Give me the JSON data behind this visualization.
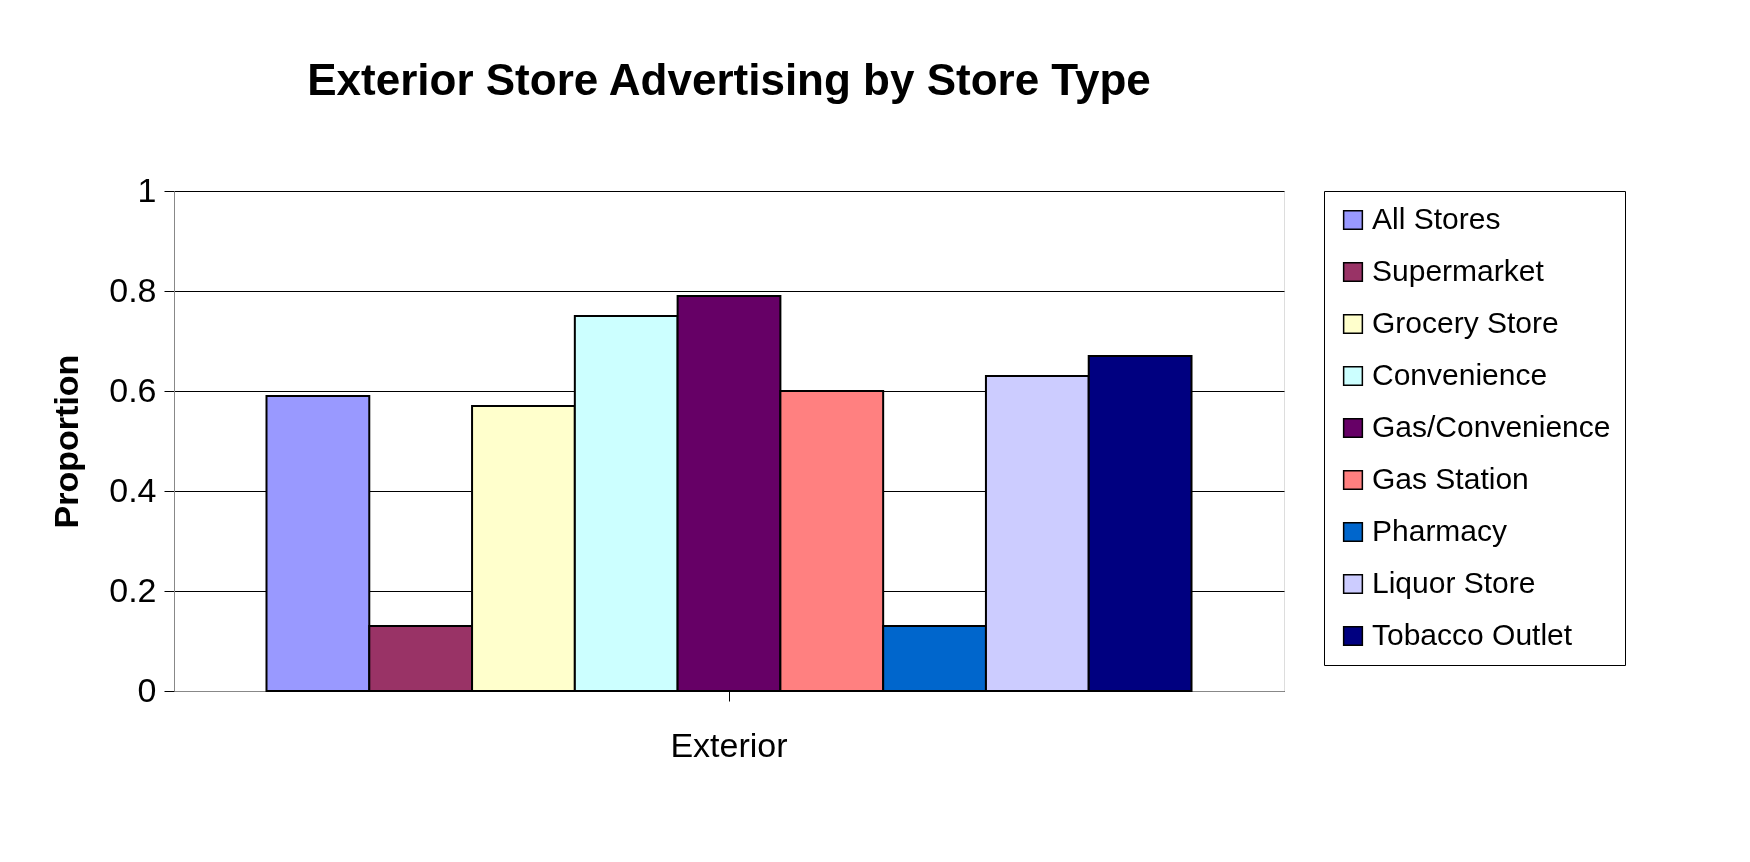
{
  "chart_data": {
    "type": "bar",
    "title": "Exterior Store Advertising by Store Type",
    "ylabel": "Proportion",
    "categories": [
      "Exterior"
    ],
    "series": [
      {
        "name": "All Stores",
        "color": "#9999ff",
        "values": [
          0.59
        ]
      },
      {
        "name": "Supermarket",
        "color": "#993366",
        "values": [
          0.13
        ]
      },
      {
        "name": "Grocery Store",
        "color": "#ffffcc",
        "values": [
          0.57
        ]
      },
      {
        "name": "Convenience",
        "color": "#ccffff",
        "values": [
          0.75
        ]
      },
      {
        "name": "Gas/Convenience",
        "color": "#660066",
        "values": [
          0.79
        ]
      },
      {
        "name": "Gas Station",
        "color": "#ff8080",
        "values": [
          0.6
        ]
      },
      {
        "name": "Pharmacy",
        "color": "#0066cc",
        "values": [
          0.13
        ]
      },
      {
        "name": "Liquor Store",
        "color": "#ccccff",
        "values": [
          0.63
        ]
      },
      {
        "name": "Tobacco Outlet",
        "color": "#000080",
        "values": [
          0.67
        ]
      }
    ],
    "ylim": [
      0,
      1
    ],
    "yticks": [
      0,
      0.2,
      0.4,
      0.6,
      0.8,
      1
    ],
    "grid": "y",
    "legend": "right"
  }
}
